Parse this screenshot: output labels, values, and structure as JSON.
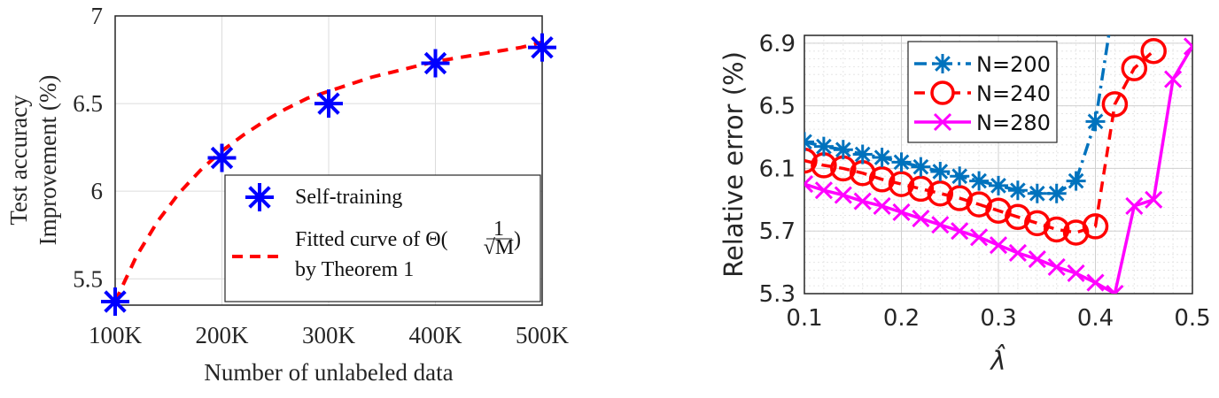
{
  "chart_data": [
    {
      "type": "scatter",
      "xlabel": "Number of unlabeled data",
      "ylabel_line1": "Test accuracy",
      "ylabel_line2": "Improvement (%)",
      "x_tick_labels": [
        "100K",
        "200K",
        "300K",
        "400K",
        "500K"
      ],
      "y_tick_labels": [
        "5.5",
        "6",
        "6.5",
        "7"
      ],
      "xlim": [
        100,
        500
      ],
      "ylim": [
        5.35,
        7
      ],
      "grid": true,
      "legend_position": "bottom-right",
      "series": [
        {
          "name": "Self-training",
          "marker": "asterisk",
          "color": "#0000ff",
          "x": [
            100,
            200,
            300,
            400,
            500
          ],
          "y": [
            5.37,
            6.19,
            6.5,
            6.73,
            6.82
          ]
        },
        {
          "name": "Fitted curve of Θ(1/√M) by Theorem 1",
          "style": "dashed",
          "color": "#ff0000",
          "x": [
            100,
            120,
            140,
            160,
            180,
            200,
            220,
            240,
            260,
            280,
            300,
            320,
            340,
            360,
            380,
            400,
            420,
            440,
            460,
            480,
            500
          ],
          "y": [
            5.37,
            5.63,
            5.83,
            5.99,
            6.12,
            6.23,
            6.32,
            6.4,
            6.47,
            6.53,
            6.57,
            6.61,
            6.65,
            6.68,
            6.71,
            6.74,
            6.76,
            6.78,
            6.8,
            6.82,
            6.85
          ]
        }
      ],
      "legend_line1": "Self-training",
      "legend_line2": "Fitted curve of Θ(",
      "legend_frac_num": "1",
      "legend_frac_den": "√M",
      "legend_line2_close": ")",
      "legend_line3": "by Theorem 1"
    },
    {
      "type": "line",
      "xlabel": "λ̂",
      "ylabel": "Relative error (%)",
      "x_tick_labels": [
        "0.1",
        "0.2",
        "0.3",
        "0.4",
        "0.5"
      ],
      "y_tick_labels": [
        "5.3",
        "5.7",
        "6.1",
        "6.5",
        "6.9"
      ],
      "xlim": [
        0.1,
        0.5
      ],
      "ylim": [
        5.3,
        6.95
      ],
      "grid": true,
      "legend_position": "top-left",
      "series": [
        {
          "name": "N=200",
          "marker": "asterisk",
          "style": "dash-dot",
          "color": "#0072bd",
          "x": [
            0.1,
            0.12,
            0.14,
            0.16,
            0.18,
            0.2,
            0.22,
            0.24,
            0.26,
            0.28,
            0.3,
            0.32,
            0.34,
            0.36,
            0.38,
            0.4,
            0.42
          ],
          "y": [
            6.27,
            6.24,
            6.22,
            6.19,
            6.17,
            6.14,
            6.11,
            6.08,
            6.05,
            6.02,
            5.99,
            5.96,
            5.94,
            5.94,
            6.02,
            6.4,
            7.2
          ]
        },
        {
          "name": "N=240",
          "marker": "circle",
          "style": "dashed",
          "color": "#ff0000",
          "x": [
            0.1,
            0.12,
            0.14,
            0.16,
            0.18,
            0.2,
            0.22,
            0.24,
            0.26,
            0.28,
            0.3,
            0.32,
            0.34,
            0.36,
            0.38,
            0.4,
            0.42,
            0.44,
            0.46
          ],
          "y": [
            6.15,
            6.12,
            6.1,
            6.07,
            6.03,
            6.0,
            5.97,
            5.94,
            5.91,
            5.87,
            5.83,
            5.79,
            5.75,
            5.71,
            5.69,
            5.73,
            6.51,
            6.74,
            6.85
          ]
        },
        {
          "name": "N=280",
          "marker": "x",
          "style": "solid",
          "color": "#ff00ff",
          "x": [
            0.1,
            0.12,
            0.14,
            0.16,
            0.18,
            0.2,
            0.22,
            0.24,
            0.26,
            0.28,
            0.3,
            0.32,
            0.34,
            0.36,
            0.38,
            0.4,
            0.42,
            0.44,
            0.46,
            0.48,
            0.5
          ],
          "y": [
            6.0,
            5.96,
            5.93,
            5.89,
            5.86,
            5.82,
            5.78,
            5.74,
            5.7,
            5.66,
            5.61,
            5.56,
            5.52,
            5.47,
            5.43,
            5.37,
            5.3,
            5.86,
            5.9,
            6.67,
            6.88
          ]
        }
      ]
    }
  ]
}
